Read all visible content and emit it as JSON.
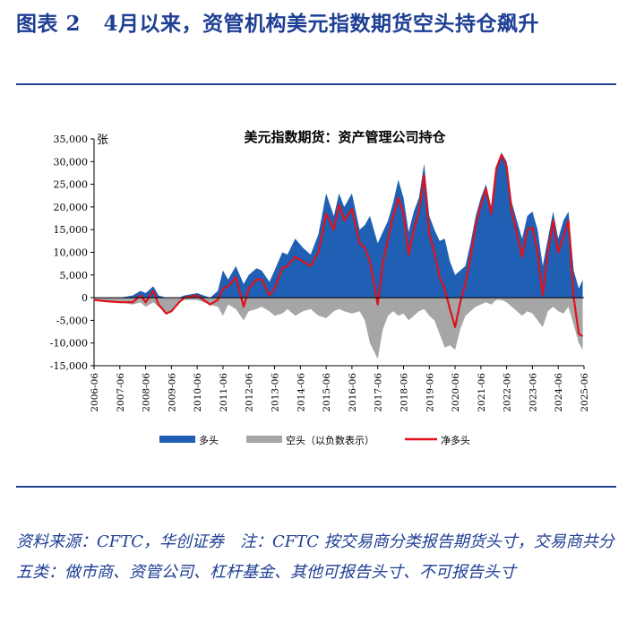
{
  "header": {
    "figure_label": "图表 2",
    "title": "4月以来，资管机构美元指数期货空头持仓飙升"
  },
  "source": {
    "text": "资料来源：CFTC，华创证券　注：CFTC 按交易商分类报告期货头寸，交易商共分五类：做市商、资管公司、杠杆基金、其他可报告头寸、不可报告头寸"
  },
  "chart_data": {
    "type": "area",
    "title": "美元指数期货：资产管理公司持仓",
    "ylabel": "张",
    "xlabel": "",
    "ylim": [
      -15000,
      35000
    ],
    "yticks": [
      35000,
      30000,
      25000,
      20000,
      15000,
      10000,
      5000,
      0,
      -5000,
      -10000,
      -15000
    ],
    "ytick_labels": [
      "35,000",
      "30,000",
      "25,000",
      "20,000",
      "15,000",
      "10,000",
      "5,000",
      "0",
      "-5,000",
      "-10,000",
      "-15,000"
    ],
    "x_tick_labels": [
      "2006-06",
      "2007-06",
      "2008-06",
      "2009-06",
      "2010-06",
      "2011-06",
      "2012-06",
      "2013-06",
      "2014-06",
      "2015-06",
      "2016-06",
      "2017-06",
      "2018-06",
      "2019-06",
      "2020-06",
      "2021-06",
      "2022-06",
      "2023-06",
      "2024-06",
      "2025-06"
    ],
    "legend_position": "bottom",
    "x": [
      2006.5,
      2007.0,
      2007.5,
      2008.0,
      2008.3,
      2008.5,
      2008.8,
      2009.0,
      2009.3,
      2009.5,
      2009.8,
      2010.0,
      2010.5,
      2011.0,
      2011.3,
      2011.5,
      2011.7,
      2012.0,
      2012.3,
      2012.5,
      2012.8,
      2013.0,
      2013.3,
      2013.5,
      2013.8,
      2014.0,
      2014.3,
      2014.6,
      2014.9,
      2015.2,
      2015.5,
      2015.8,
      2016.0,
      2016.2,
      2016.5,
      2016.8,
      2017.0,
      2017.2,
      2017.5,
      2017.7,
      2017.9,
      2018.1,
      2018.3,
      2018.5,
      2018.7,
      2018.9,
      2019.1,
      2019.3,
      2019.5,
      2019.7,
      2019.9,
      2020.1,
      2020.3,
      2020.5,
      2020.7,
      2020.9,
      2021.1,
      2021.3,
      2021.5,
      2021.7,
      2021.9,
      2022.1,
      2022.3,
      2022.5,
      2022.7,
      2022.9,
      2023.1,
      2023.3,
      2023.5,
      2023.7,
      2023.9,
      2024.1,
      2024.3,
      2024.5,
      2024.7,
      2024.9,
      2025.1,
      2025.3,
      2025.45
    ],
    "series": [
      {
        "name": "多头",
        "color": "#1f5fb4",
        "kind": "area",
        "values": [
          0,
          0,
          0,
          500,
          1500,
          1000,
          2500,
          500,
          0,
          0,
          0,
          500,
          1000,
          0,
          1500,
          6000,
          4000,
          7000,
          3000,
          5000,
          6500,
          6000,
          3500,
          6000,
          10000,
          9500,
          13000,
          11000,
          9500,
          14000,
          23000,
          18000,
          23000,
          20000,
          23000,
          15000,
          16000,
          18000,
          12000,
          14500,
          17000,
          21000,
          26000,
          22000,
          14500,
          19000,
          22000,
          29500,
          18000,
          15000,
          12500,
          13000,
          8000,
          5000,
          6000,
          7000,
          12000,
          18000,
          22000,
          25000,
          20000,
          29000,
          32000,
          30000,
          21000,
          17000,
          13000,
          18000,
          19000,
          15000,
          7000,
          13000,
          19000,
          13000,
          17000,
          19000,
          6000,
          2000,
          4000
        ]
      },
      {
        "name": "空头（以负数表示）",
        "color": "#a6a6a6",
        "kind": "area",
        "values": [
          -500,
          -800,
          -1000,
          -1500,
          -1000,
          -2000,
          -1000,
          -2000,
          -3500,
          -3000,
          -1000,
          -500,
          -500,
          -1500,
          -2000,
          -4000,
          -1500,
          -2500,
          -5000,
          -3000,
          -2500,
          -2000,
          -3000,
          -4000,
          -3500,
          -2500,
          -4000,
          -3000,
          -2500,
          -4000,
          -4500,
          -3000,
          -2500,
          -3000,
          -3500,
          -3000,
          -5000,
          -10000,
          -13500,
          -7000,
          -4000,
          -3000,
          -4000,
          -3500,
          -5000,
          -4000,
          -3000,
          -2500,
          -4000,
          -5000,
          -8000,
          -11000,
          -10500,
          -11500,
          -7000,
          -4000,
          -3000,
          -2000,
          -1500,
          -1000,
          -1500,
          -500,
          -500,
          -1000,
          -2000,
          -3000,
          -4000,
          -3000,
          -3500,
          -5000,
          -6500,
          -3000,
          -2000,
          -3000,
          -3500,
          -2000,
          -6000,
          -10000,
          -11500
        ]
      },
      {
        "name": "净多头",
        "color": "#e0121b",
        "kind": "line",
        "values": [
          -500,
          -800,
          -1000,
          -1000,
          500,
          -1000,
          1500,
          -1500,
          -3500,
          -3000,
          -1000,
          0,
          500,
          -1500,
          -500,
          2000,
          2500,
          4500,
          -2000,
          2000,
          4000,
          4000,
          500,
          2000,
          6500,
          7000,
          9000,
          8000,
          7000,
          10000,
          18500,
          15000,
          20500,
          17000,
          19500,
          12000,
          11000,
          8000,
          -1500,
          7500,
          13000,
          18000,
          22000,
          18500,
          9500,
          15000,
          19000,
          27000,
          14000,
          10000,
          4500,
          2000,
          -2500,
          -6500,
          -1000,
          3000,
          9000,
          16000,
          20500,
          24000,
          18500,
          28500,
          31500,
          29000,
          19000,
          14000,
          9000,
          15000,
          15500,
          10000,
          500,
          10000,
          17000,
          10000,
          13500,
          17000,
          0,
          -8000,
          -8500
        ]
      }
    ]
  }
}
